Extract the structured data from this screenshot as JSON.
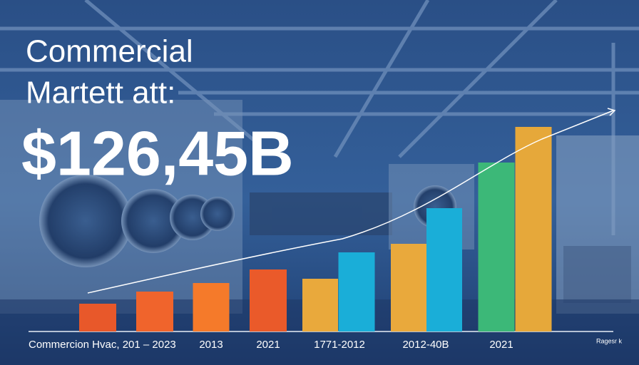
{
  "chart_data": {
    "type": "bar",
    "title": "Commercial",
    "subtitle": "Martett att:",
    "headline": "$126,45B",
    "categories": [
      "Commercion Hvac, 201 – 2023",
      null,
      "2013",
      "2021",
      "1771-2012",
      null,
      "2012-40B",
      null,
      "2021",
      null
    ],
    "values": [
      39,
      56,
      68,
      87,
      74,
      111,
      123,
      173,
      237,
      287
    ],
    "colors": [
      "#e8582a",
      "#f0642c",
      "#f57a2a",
      "#ea5a2a",
      "#e9a93c",
      "#1aaed8",
      "#e9a93c",
      "#1aaed8",
      "#3cb878",
      "#e6a83a"
    ],
    "ylim": [
      0,
      300
    ],
    "footnote": "Ragesr k"
  }
}
